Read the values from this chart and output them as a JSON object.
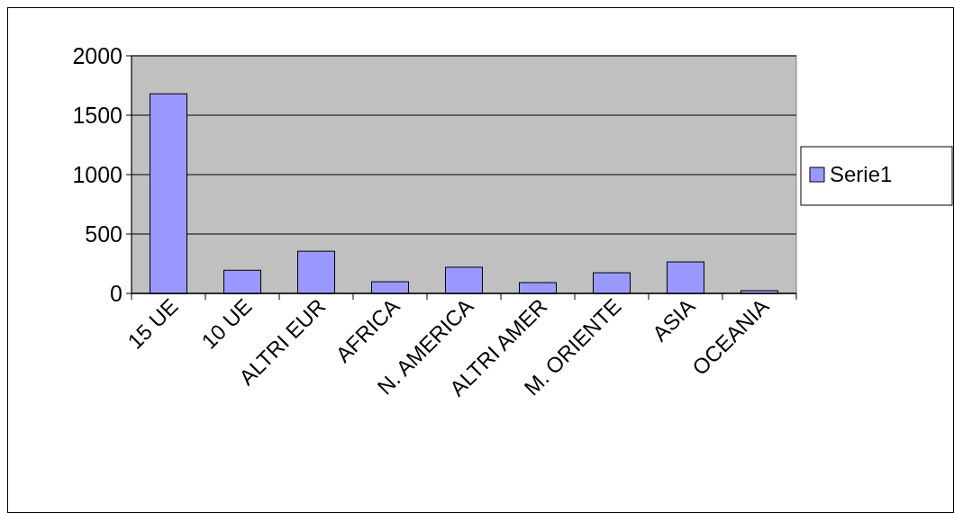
{
  "chart_data": {
    "type": "bar",
    "categories": [
      "15 UE",
      "10 UE",
      "ALTRI  EUR",
      "AFRICA",
      "N. AMERICA",
      "ALTRI AMER",
      "M. ORIENTE",
      "ASIA",
      "OCEANIA"
    ],
    "series": [
      {
        "name": "Serie1",
        "color": "#9999ff",
        "values": [
          1680,
          195,
          355,
          98,
          220,
          91,
          174,
          265,
          23
        ]
      }
    ],
    "ylim": [
      0,
      2000
    ],
    "yticks": [
      0,
      500,
      1000,
      1500,
      2000
    ],
    "grid": "y",
    "legend": "right"
  }
}
